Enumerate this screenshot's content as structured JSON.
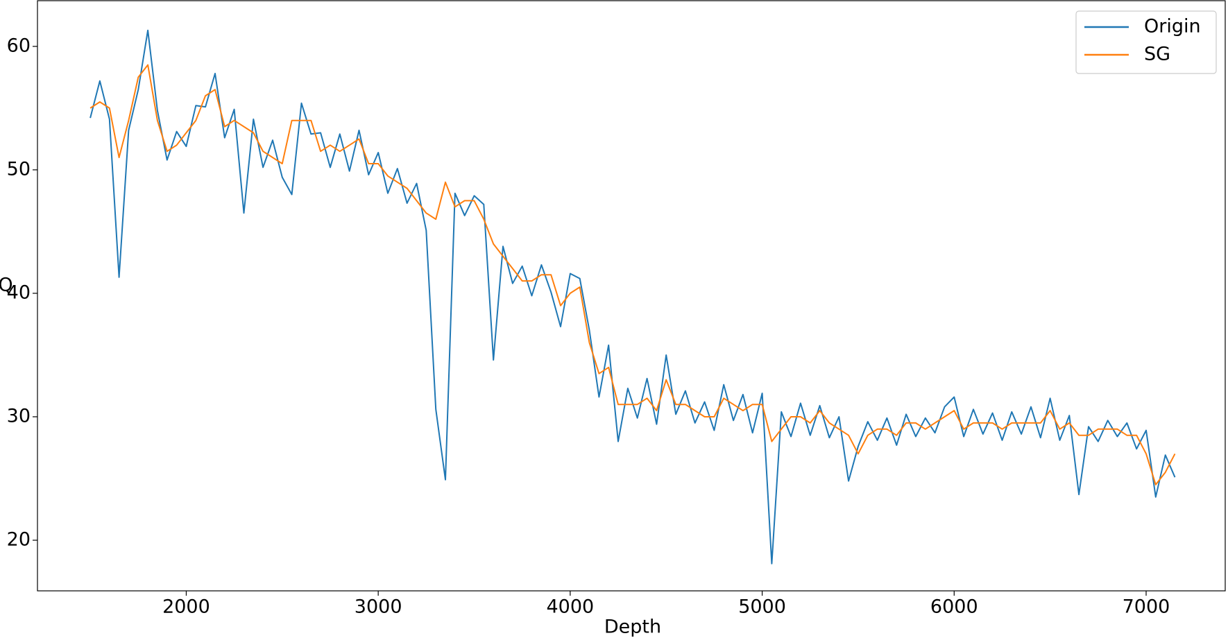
{
  "chart_data": {
    "type": "line",
    "x_label": "Depth",
    "y_label": "Q",
    "x": [
      1500,
      1550,
      1600,
      1650,
      1700,
      1750,
      1800,
      1850,
      1900,
      1950,
      2000,
      2050,
      2100,
      2150,
      2200,
      2250,
      2300,
      2350,
      2400,
      2450,
      2500,
      2550,
      2600,
      2650,
      2700,
      2750,
      2800,
      2850,
      2900,
      2950,
      3000,
      3050,
      3100,
      3150,
      3200,
      3250,
      3300,
      3350,
      3400,
      3450,
      3500,
      3550,
      3600,
      3650,
      3700,
      3750,
      3800,
      3850,
      3900,
      3950,
      4000,
      4050,
      4100,
      4150,
      4200,
      4250,
      4300,
      4350,
      4400,
      4450,
      4500,
      4550,
      4600,
      4650,
      4700,
      4750,
      4800,
      4850,
      4900,
      4950,
      5000,
      5050,
      5100,
      5150,
      5200,
      5250,
      5300,
      5350,
      5400,
      5450,
      5500,
      5550,
      5600,
      5650,
      5700,
      5750,
      5800,
      5850,
      5900,
      5950,
      6000,
      6050,
      6100,
      6150,
      6200,
      6250,
      6300,
      6350,
      6400,
      6450,
      6500,
      6550,
      6600,
      6650,
      6700,
      6750,
      6800,
      6850,
      6900,
      6950,
      7000,
      7050,
      7100,
      7150
    ],
    "series": [
      {
        "name": "Origin",
        "color": "#1f77b4",
        "values": [
          54.2,
          57.2,
          54.1,
          41.3,
          53.2,
          56.5,
          61.3,
          54.8,
          50.8,
          53.1,
          51.9,
          55.2,
          55.1,
          57.8,
          52.6,
          54.9,
          46.5,
          54.1,
          50.2,
          52.4,
          49.4,
          48.0,
          55.4,
          52.9,
          53.0,
          50.2,
          52.9,
          49.9,
          53.2,
          49.6,
          51.4,
          48.1,
          50.1,
          47.3,
          48.9,
          45.1,
          30.6,
          24.9,
          48.1,
          46.3,
          47.9,
          47.2,
          34.6,
          43.8,
          40.8,
          42.2,
          39.8,
          42.3,
          40.1,
          37.3,
          41.6,
          41.2,
          37.0,
          31.6,
          35.8,
          28.0,
          32.3,
          29.9,
          33.1,
          29.4,
          35.0,
          30.2,
          32.1,
          29.5,
          31.2,
          28.9,
          32.6,
          29.7,
          31.8,
          28.7,
          31.9,
          18.1,
          30.4,
          28.4,
          31.1,
          28.5,
          30.9,
          28.3,
          30.0,
          24.8,
          27.6,
          29.6,
          28.1,
          29.9,
          27.7,
          30.2,
          28.4,
          29.9,
          28.7,
          30.8,
          31.6,
          28.4,
          30.6,
          28.6,
          30.3,
          28.1,
          30.4,
          28.6,
          30.8,
          28.3,
          31.5,
          28.1,
          30.1,
          23.7,
          29.2,
          28.0,
          29.7,
          28.4,
          29.5,
          27.4,
          28.9,
          23.5,
          26.9,
          25.1
        ]
      },
      {
        "name": "SG",
        "color": "#ff7f0e",
        "values": [
          55.0,
          55.5,
          55.0,
          51.0,
          54.0,
          57.5,
          58.5,
          54.0,
          51.5,
          52.0,
          53.0,
          54.0,
          56.0,
          56.5,
          53.5,
          54.0,
          53.5,
          53.0,
          51.5,
          51.0,
          50.5,
          54.0,
          54.0,
          54.0,
          51.5,
          52.0,
          51.5,
          52.0,
          52.5,
          50.5,
          50.5,
          49.5,
          49.0,
          48.5,
          47.5,
          46.5,
          46.0,
          49.0,
          47.0,
          47.5,
          47.5,
          46.0,
          44.0,
          43.0,
          42.0,
          41.0,
          41.0,
          41.5,
          41.5,
          39.0,
          40.0,
          40.5,
          36.0,
          33.5,
          34.0,
          31.0,
          31.0,
          31.0,
          31.5,
          30.5,
          33.0,
          31.0,
          31.0,
          30.5,
          30.0,
          30.0,
          31.5,
          31.0,
          30.5,
          31.0,
          31.0,
          28.0,
          29.0,
          30.0,
          30.0,
          29.5,
          30.5,
          29.5,
          29.0,
          28.5,
          27.0,
          28.5,
          29.0,
          29.0,
          28.5,
          29.5,
          29.5,
          29.0,
          29.5,
          30.0,
          30.5,
          29.0,
          29.5,
          29.5,
          29.5,
          29.0,
          29.5,
          29.5,
          29.5,
          29.5,
          30.5,
          29.0,
          29.5,
          28.5,
          28.5,
          29.0,
          29.0,
          29.0,
          28.5,
          28.5,
          27.0,
          24.5,
          25.5,
          27.0
        ]
      }
    ],
    "xlim": [
      1225,
      7412
    ],
    "ylim": [
      15.9,
      63.7
    ],
    "xticks": [
      2000,
      3000,
      4000,
      5000,
      6000,
      7000
    ],
    "yticks": [
      20,
      30,
      40,
      50,
      60
    ],
    "legend": "upper right"
  }
}
